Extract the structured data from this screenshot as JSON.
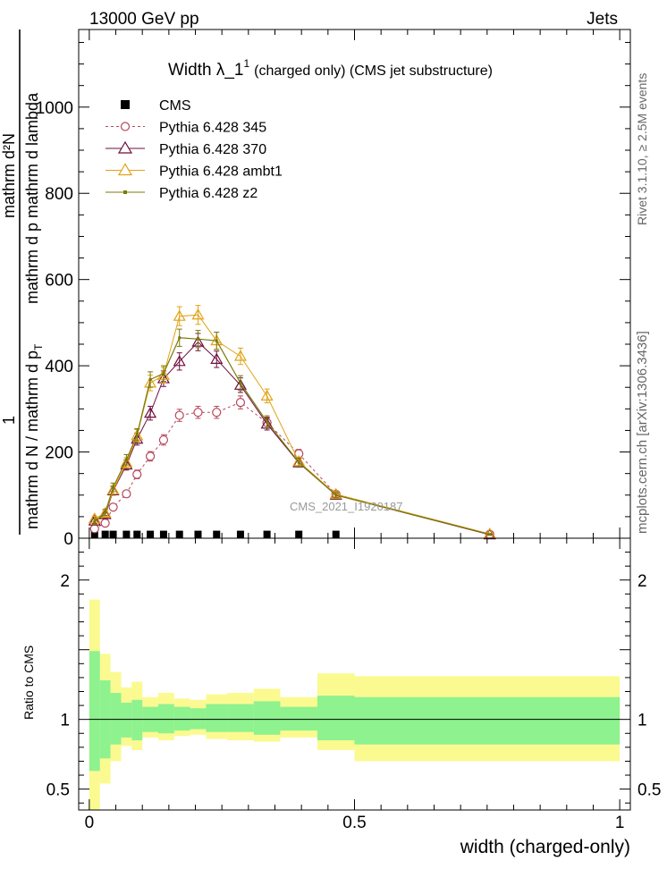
{
  "header": {
    "left": "13000 GeV pp",
    "right": "Jets"
  },
  "side_labels": {
    "rivet": "Rivet 3.1.10, ≥ 2.5M events",
    "source": "mcplots.cern.ch [arXiv:1306.3436]"
  },
  "watermark": "CMS_2021_I1920187",
  "chart_data": [
    {
      "type": "scatter",
      "title": "Width λ_1",
      "title_sup": "1",
      "subtitle": "(charged only) (CMS jet substructure)",
      "ylabel_numerator": "mathrm d²N",
      "ylabel_numerator_denominator": "mathrm d p  mathrm d lambda",
      "ylabel_one": "1",
      "ylabel_denominator": "mathrm d N / mathrm d p",
      "ylabel_sub": "T",
      "xlim": [
        -0.02,
        1.02
      ],
      "ylim": [
        0,
        1180
      ],
      "yticks": [
        0,
        200,
        400,
        600,
        800,
        1000
      ],
      "ytick_labels": [
        "0",
        "200",
        "400",
        "600",
        "800",
        "1000"
      ],
      "legend_position": "top-left",
      "series": [
        {
          "name": "CMS",
          "color": "#000000",
          "marker": "square",
          "x": [
            0.01,
            0.03,
            0.045,
            0.07,
            0.09,
            0.115,
            0.14,
            0.17,
            0.205,
            0.24,
            0.285,
            0.335,
            0.395,
            0.465
          ],
          "y": [
            5,
            5,
            5,
            5,
            5,
            5,
            5,
            5,
            5,
            5,
            5,
            5,
            5,
            5
          ]
        },
        {
          "name": "Pythia 6.428 345",
          "color": "#b5475b",
          "marker": "circle-open",
          "dash": true,
          "x": [
            0.01,
            0.03,
            0.045,
            0.07,
            0.09,
            0.115,
            0.14,
            0.17,
            0.205,
            0.24,
            0.285,
            0.335,
            0.395,
            0.465,
            0.755
          ],
          "y": [
            22,
            35,
            72,
            103,
            148,
            190,
            228,
            285,
            292,
            292,
            315,
            268,
            196,
            102,
            9
          ],
          "err": [
            4,
            5,
            7,
            8,
            10,
            11,
            12,
            14,
            14,
            14,
            15,
            13,
            10,
            6,
            1
          ]
        },
        {
          "name": "Pythia 6.428 370",
          "color": "#6e0f3d",
          "marker": "triangle-open",
          "x": [
            0.01,
            0.03,
            0.045,
            0.07,
            0.09,
            0.115,
            0.14,
            0.17,
            0.205,
            0.24,
            0.285,
            0.335,
            0.395,
            0.465,
            0.755
          ],
          "y": [
            40,
            55,
            110,
            170,
            230,
            290,
            370,
            410,
            455,
            415,
            355,
            265,
            175,
            100,
            8
          ],
          "err": [
            6,
            7,
            10,
            12,
            14,
            16,
            18,
            20,
            20,
            19,
            17,
            14,
            10,
            6,
            1
          ]
        },
        {
          "name": "Pythia 6.428 ambt1",
          "color": "#e1a316",
          "marker": "triangle-open",
          "x": [
            0.01,
            0.03,
            0.045,
            0.07,
            0.09,
            0.115,
            0.14,
            0.17,
            0.205,
            0.24,
            0.285,
            0.335,
            0.395,
            0.465,
            0.755
          ],
          "y": [
            45,
            58,
            112,
            175,
            238,
            360,
            378,
            515,
            518,
            458,
            422,
            330,
            178,
            102,
            10
          ],
          "err": [
            6,
            7,
            10,
            12,
            14,
            18,
            18,
            22,
            22,
            20,
            19,
            16,
            10,
            6,
            1
          ]
        },
        {
          "name": "Pythia 6.428 z2",
          "color": "#7a7a0a",
          "marker": "dot",
          "x": [
            0.01,
            0.03,
            0.045,
            0.07,
            0.09,
            0.115,
            0.14,
            0.17,
            0.205,
            0.24,
            0.285,
            0.335,
            0.395,
            0.465,
            0.755
          ],
          "y": [
            38,
            60,
            118,
            182,
            240,
            368,
            382,
            465,
            462,
            458,
            360,
            270,
            176,
            100,
            9
          ],
          "err": [
            6,
            7,
            10,
            12,
            14,
            18,
            18,
            20,
            20,
            20,
            17,
            14,
            10,
            6,
            1
          ]
        }
      ]
    },
    {
      "type": "area",
      "ylabel": "Ratio to CMS",
      "xlabel": "width (charged-only)",
      "xlim": [
        -0.02,
        1.02
      ],
      "ylim": [
        0.35,
        2.3
      ],
      "xticks": [
        0,
        0.5,
        1
      ],
      "xtick_labels": [
        "0",
        "0.5",
        "1"
      ],
      "yticks": [
        0.5,
        1,
        2
      ],
      "ytick_labels": [
        "0.5",
        "1",
        "2"
      ],
      "colors": {
        "inner": "#8ef28e",
        "outer": "#fafa91"
      },
      "bins": [
        {
          "x": [
            0.0,
            0.02
          ],
          "inner": [
            0.63,
            1.49
          ],
          "outer": [
            0.35,
            1.86
          ]
        },
        {
          "x": [
            0.02,
            0.04
          ],
          "inner": [
            0.72,
            1.28
          ],
          "outer": [
            0.54,
            1.47
          ]
        },
        {
          "x": [
            0.04,
            0.06
          ],
          "inner": [
            0.82,
            1.19
          ],
          "outer": [
            0.7,
            1.34
          ]
        },
        {
          "x": [
            0.06,
            0.08
          ],
          "inner": [
            0.87,
            1.12
          ],
          "outer": [
            0.81,
            1.23
          ]
        },
        {
          "x": [
            0.08,
            0.1
          ],
          "inner": [
            0.85,
            1.14
          ],
          "outer": [
            0.78,
            1.27
          ]
        },
        {
          "x": [
            0.1,
            0.13
          ],
          "inner": [
            0.91,
            1.09
          ],
          "outer": [
            0.87,
            1.16
          ]
        },
        {
          "x": [
            0.13,
            0.16
          ],
          "inner": [
            0.9,
            1.11
          ],
          "outer": [
            0.85,
            1.19
          ]
        },
        {
          "x": [
            0.16,
            0.19
          ],
          "inner": [
            0.92,
            1.09
          ],
          "outer": [
            0.88,
            1.15
          ]
        },
        {
          "x": [
            0.19,
            0.22
          ],
          "inner": [
            0.93,
            1.08
          ],
          "outer": [
            0.89,
            1.14
          ]
        },
        {
          "x": [
            0.22,
            0.26
          ],
          "inner": [
            0.91,
            1.11
          ],
          "outer": [
            0.86,
            1.18
          ]
        },
        {
          "x": [
            0.26,
            0.31
          ],
          "inner": [
            0.91,
            1.11
          ],
          "outer": [
            0.85,
            1.19
          ]
        },
        {
          "x": [
            0.31,
            0.36
          ],
          "inner": [
            0.89,
            1.13
          ],
          "outer": [
            0.84,
            1.22
          ]
        },
        {
          "x": [
            0.36,
            0.43
          ],
          "inner": [
            0.92,
            1.09
          ],
          "outer": [
            0.87,
            1.16
          ]
        },
        {
          "x": [
            0.43,
            0.5
          ],
          "inner": [
            0.85,
            1.17
          ],
          "outer": [
            0.78,
            1.33
          ]
        },
        {
          "x": [
            0.5,
            1.0
          ],
          "inner": [
            0.82,
            1.16
          ],
          "outer": [
            0.7,
            1.31
          ]
        }
      ],
      "reference": 1
    }
  ]
}
